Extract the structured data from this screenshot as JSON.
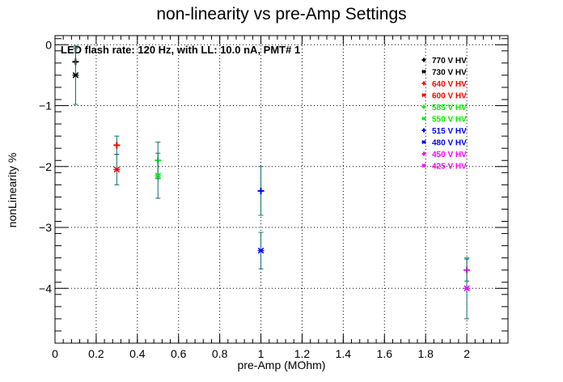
{
  "chart_data": {
    "type": "scatter",
    "title": "non-linearity vs pre-Amp Settings",
    "xlabel": "pre-Amp (MOhm)",
    "ylabel": "nonLinearity %",
    "annotation": "LED flash rate: 120 Hz, with LL: 10.0 nA, PMT# 1",
    "xlim": [
      0,
      2.2
    ],
    "ylim": [
      -4.9,
      0.15
    ],
    "x_ticks": [
      0,
      0.2,
      0.4,
      0.6,
      0.8,
      1,
      1.2,
      1.4,
      1.6,
      1.8,
      2
    ],
    "x_tick_labels": [
      "0",
      "0.2",
      "0.4",
      "0.6",
      "0.8",
      "1",
      "1.2",
      "1.4",
      "1.6",
      "1.8",
      "2"
    ],
    "y_ticks": [
      0,
      -1,
      -2,
      -3,
      -4
    ],
    "y_tick_labels": [
      "0",
      "−1",
      "−2",
      "−3",
      "−4"
    ],
    "grid": true,
    "legend_position": "top-right",
    "series": [
      {
        "name": "770 V HV",
        "color": "#000000",
        "marker": "plus",
        "points": [
          {
            "x": 0.1,
            "y": -0.28,
            "err": 0.22
          }
        ]
      },
      {
        "name": "730 V HV",
        "color": "#000000",
        "marker": "star",
        "points": [
          {
            "x": 0.1,
            "y": -0.5,
            "err": 0.48
          }
        ]
      },
      {
        "name": "640 V HV",
        "color": "#ff0000",
        "marker": "plus",
        "points": [
          {
            "x": 0.3,
            "y": -1.65,
            "err": 0.15
          }
        ]
      },
      {
        "name": "600 V HV",
        "color": "#ff0000",
        "marker": "star",
        "points": [
          {
            "x": 0.3,
            "y": -2.05,
            "err": 0.25
          }
        ]
      },
      {
        "name": "585 V HV",
        "color": "#00ee00",
        "marker": "plus",
        "points": [
          {
            "x": 0.5,
            "y": -1.9,
            "err": 0.3
          }
        ]
      },
      {
        "name": "550 V HV",
        "color": "#00ee00",
        "marker": "star",
        "points": [
          {
            "x": 0.5,
            "y": -2.15,
            "err": 0.37
          }
        ]
      },
      {
        "name": "515 V HV",
        "color": "#0000ff",
        "marker": "plus",
        "points": [
          {
            "x": 1.0,
            "y": -2.4,
            "err": 0.4
          }
        ]
      },
      {
        "name": "480 V HV",
        "color": "#0000ff",
        "marker": "star",
        "points": [
          {
            "x": 1.0,
            "y": -3.38,
            "err": 0.3
          }
        ]
      },
      {
        "name": "450 V HV",
        "color": "#ff00ff",
        "marker": "plus",
        "points": [
          {
            "x": 2.0,
            "y": -3.7,
            "err": 0.18
          }
        ]
      },
      {
        "name": "425 V HV",
        "color": "#ff00ff",
        "marker": "star",
        "points": [
          {
            "x": 2.0,
            "y": -4.0,
            "err": 0.5
          }
        ]
      }
    ],
    "error_bar_color": "#0b6e74"
  }
}
